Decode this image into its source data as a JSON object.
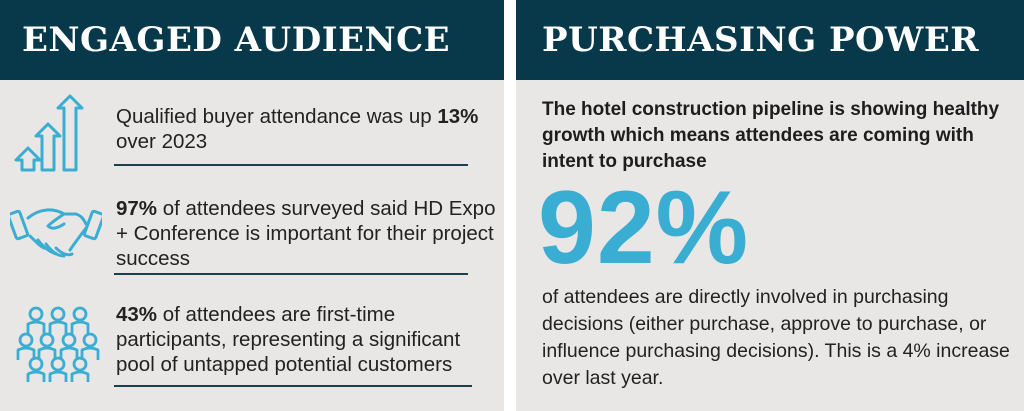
{
  "left_panel": {
    "title": "ENGAGED AUDIENCE",
    "stats": [
      {
        "pre": "Qualified buyer attendance was up ",
        "highlight": "13%",
        "post": " over 2023",
        "icon": "arrows-up-icon"
      },
      {
        "pre": "",
        "highlight": "97%",
        "post": " of attendees surveyed said HD Expo + Conference is important for their project success",
        "icon": "handshake-icon"
      },
      {
        "pre": "",
        "highlight": "43%",
        "post": " of attendees are first-time participants, representing a significant pool of untapped potential customers",
        "icon": "people-group-icon"
      }
    ]
  },
  "right_panel": {
    "title": "PURCHASING POWER",
    "intro": "The hotel construction pipeline is showing healthy growth which means attendees are coming with intent to purchase",
    "big_number": "92%",
    "body": "of attendees are directly involved in purchasing decisions (either purchase, approve to purchase, or influence purchasing decisions). This is a 4% increase over last year."
  },
  "colors": {
    "header_bg": "#08394b",
    "panel_bg": "#e9e7e6",
    "accent": "#3aaed2",
    "divider": "#1d3f4f"
  }
}
